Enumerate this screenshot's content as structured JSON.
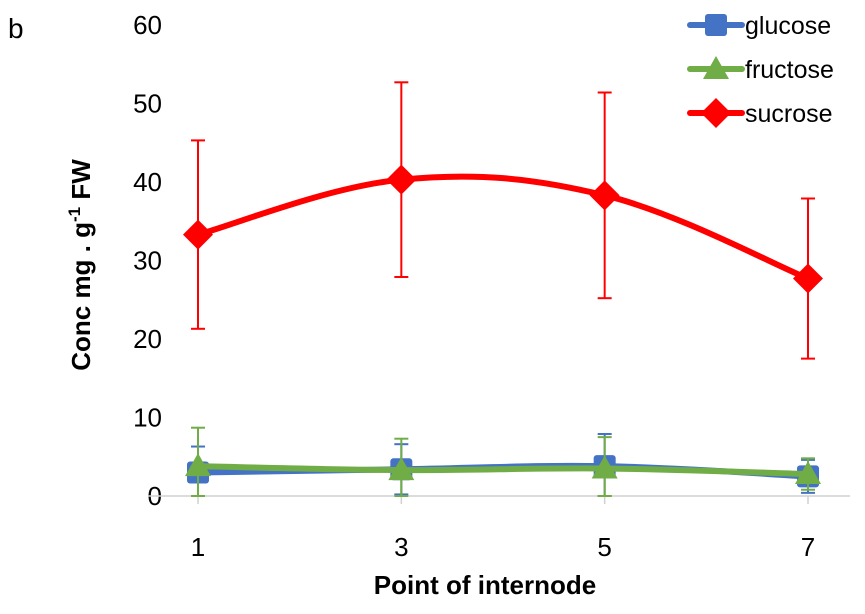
{
  "panel_label": "b",
  "chart_data": {
    "type": "line",
    "title": "",
    "xlabel": "Point of internode",
    "ylabel_main": "Conc mg . g",
    "ylabel_sup": "-1",
    "ylabel_tail": " FW",
    "x": [
      1,
      3,
      5,
      7
    ],
    "x_tick_labels": [
      "1",
      "3",
      "5",
      "7"
    ],
    "ylim": [
      0,
      60
    ],
    "y_ticks": [
      0,
      10,
      20,
      30,
      40,
      50,
      60
    ],
    "y_tick_labels": [
      "0",
      "10",
      "20",
      "30",
      "40",
      "50",
      "60"
    ],
    "grid": false,
    "legend_position": "top-right",
    "series": [
      {
        "name": "glucose",
        "color": "#4472C4",
        "marker": "square",
        "values": [
          3.0,
          3.4,
          3.8,
          2.5
        ],
        "errors": [
          3.3,
          3.2,
          4.1,
          2.1
        ]
      },
      {
        "name": "fructose",
        "color": "#70AD47",
        "marker": "triangle",
        "values": [
          3.8,
          3.3,
          3.5,
          2.8
        ],
        "errors": [
          4.9,
          4.0,
          4.0,
          2.0
        ]
      },
      {
        "name": "sucrose",
        "color": "#FF0000",
        "marker": "diamond",
        "values": [
          33.3,
          40.3,
          38.3,
          27.7
        ],
        "errors": [
          12.0,
          12.4,
          13.1,
          10.2
        ]
      }
    ]
  }
}
